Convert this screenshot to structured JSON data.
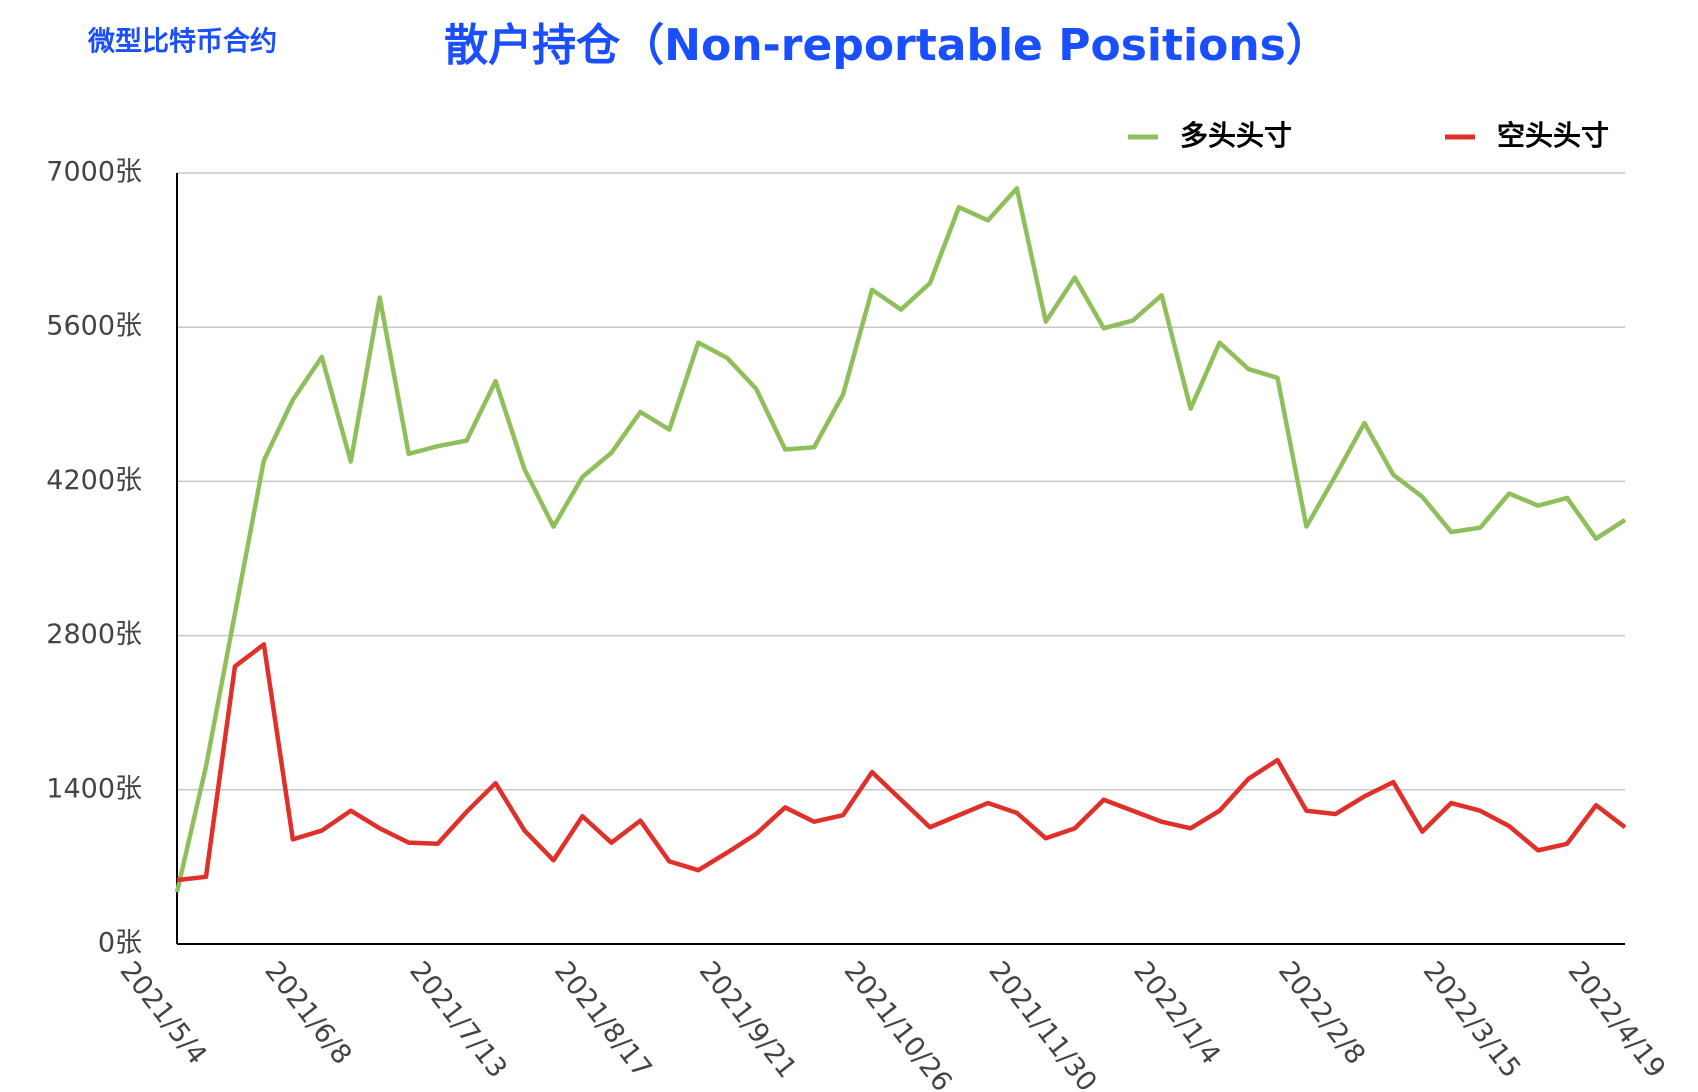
{
  "chart_data": {
    "type": "line",
    "subtitle": "微型比特币合约",
    "title": "散户持仓（Non-reportable Positions）",
    "x": [
      "2021/5/4",
      null,
      null,
      null,
      null,
      "2021/6/8",
      null,
      null,
      null,
      null,
      "2021/7/13",
      null,
      null,
      null,
      null,
      "2021/8/17",
      null,
      null,
      null,
      null,
      "2021/9/21",
      null,
      null,
      null,
      null,
      "2021/10/26",
      null,
      null,
      null,
      null,
      "2021/11/30",
      null,
      null,
      null,
      null,
      "2022/1/4",
      null,
      null,
      null,
      null,
      "2022/2/8",
      null,
      null,
      null,
      null,
      "2022/3/15",
      null,
      null,
      null,
      null,
      "2022/4/19"
    ],
    "series": [
      {
        "name": "多头头寸",
        "color": "#8fbf5a",
        "values": [
          470,
          1610,
          3000,
          4390,
          4940,
          5330,
          4380,
          5870,
          4450,
          4520,
          4570,
          5110,
          4310,
          3790,
          4240,
          4460,
          4830,
          4670,
          5460,
          5320,
          5040,
          4490,
          4510,
          4990,
          5940,
          5760,
          6000,
          6690,
          6570,
          6860,
          5650,
          6050,
          5590,
          5660,
          5890,
          4860,
          5460,
          5220,
          5140,
          3790,
          4250,
          4730,
          4260,
          4060,
          3740,
          3780,
          4090,
          3980,
          4050,
          3680,
          3850
        ]
      },
      {
        "name": "空头头寸",
        "color": "#e0302a",
        "values": [
          580,
          610,
          2520,
          2720,
          950,
          1030,
          1210,
          1050,
          920,
          910,
          1200,
          1460,
          1030,
          760,
          1160,
          920,
          1120,
          750,
          670,
          830,
          1000,
          1240,
          1110,
          1170,
          1560,
          1310,
          1060,
          1170,
          1280,
          1190,
          960,
          1050,
          1310,
          1210,
          1110,
          1050,
          1210,
          1500,
          1670,
          1210,
          1180,
          1340,
          1470,
          1020,
          1280,
          1210,
          1070,
          850,
          910,
          1260,
          1060
        ]
      }
    ],
    "ylim": [
      0,
      7000
    ],
    "yticks": [
      {
        "value": 0,
        "label": "0张"
      },
      {
        "value": 1400,
        "label": "1400张"
      },
      {
        "value": 2800,
        "label": "2800张"
      },
      {
        "value": 4200,
        "label": "4200张"
      },
      {
        "value": 5600,
        "label": "5600张"
      },
      {
        "value": 7000,
        "label": "7000张"
      }
    ],
    "grid": true,
    "legend": "top-right"
  }
}
